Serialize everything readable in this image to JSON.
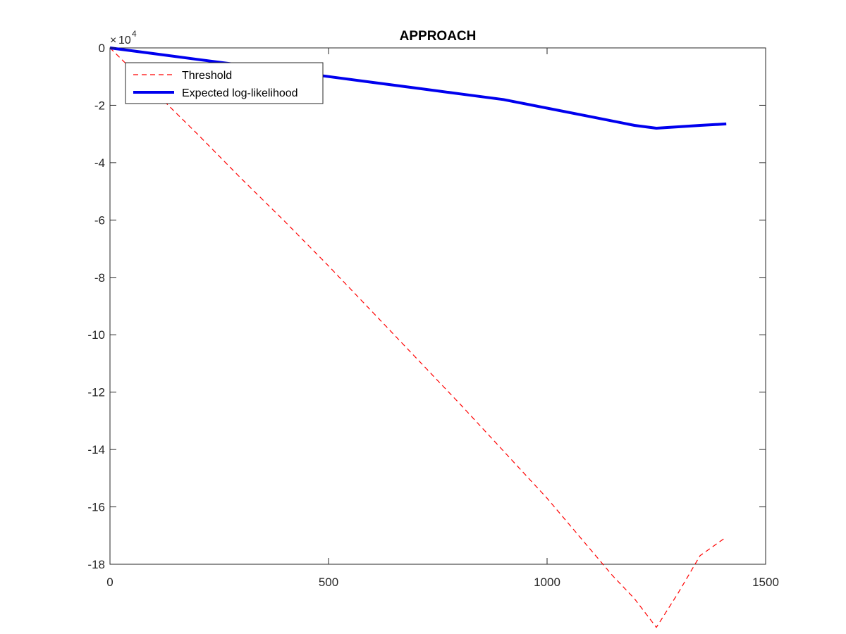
{
  "chart_data": {
    "type": "line",
    "title": "APPROACH",
    "xlabel": "",
    "ylabel": "",
    "xlim": [
      0,
      1500
    ],
    "ylim": [
      -18,
      0
    ],
    "y_multiplier_base": "10",
    "y_multiplier_exponent": "4",
    "x_ticks": [
      0,
      500,
      1000,
      1500
    ],
    "y_ticks": [
      0,
      -2,
      -4,
      -6,
      -8,
      -10,
      -12,
      -14,
      -16,
      -18
    ],
    "grid": false,
    "legend_position": "top-left",
    "series": [
      {
        "name": "Threshold",
        "color": "#ff0000",
        "style": "dashed",
        "x": [
          0,
          100,
          200,
          300,
          400,
          500,
          600,
          700,
          800,
          900,
          1000,
          1100,
          1150,
          1200,
          1250,
          1300,
          1350,
          1410
        ],
        "y": [
          0,
          -1.5,
          -3.0,
          -4.55,
          -6.05,
          -7.6,
          -9.2,
          -10.8,
          -12.4,
          -14.05,
          -15.7,
          -17.5,
          -18.4,
          -19.2,
          -20.2,
          -19.0,
          -17.7,
          -17.05
        ]
      },
      {
        "name": "Expected log-likelihood",
        "color": "#0000ee",
        "style": "solid",
        "x": [
          0,
          100,
          200,
          300,
          400,
          500,
          600,
          700,
          800,
          900,
          1000,
          1100,
          1200,
          1250,
          1300,
          1350,
          1410
        ],
        "y": [
          0,
          -0.2,
          -0.4,
          -0.6,
          -0.8,
          -1.0,
          -1.2,
          -1.4,
          -1.6,
          -1.8,
          -2.1,
          -2.4,
          -2.7,
          -2.8,
          -2.75,
          -2.7,
          -2.65
        ]
      }
    ]
  }
}
